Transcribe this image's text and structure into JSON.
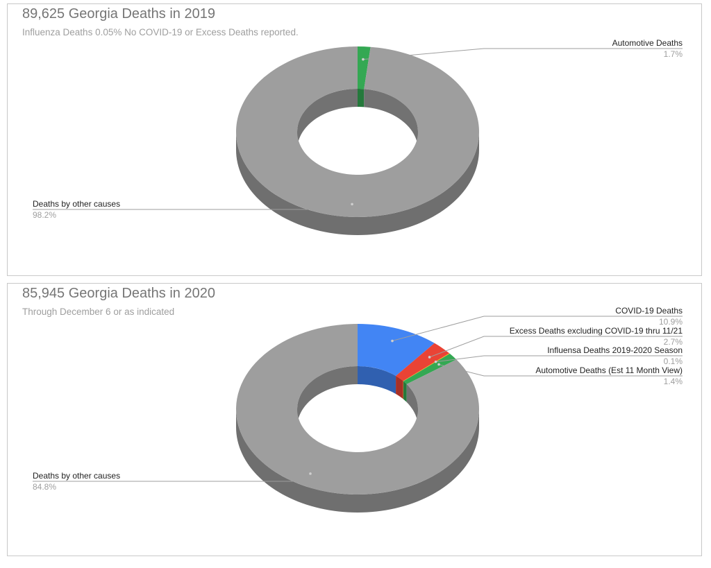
{
  "chart_data": [
    {
      "type": "pie",
      "style": "3d-donut",
      "title": "89,625 Georgia Deaths in 2019",
      "subtitle": "Influenza Deaths 0.05%  No COVID-19 or Excess Deaths reported.",
      "slices": [
        {
          "label": "Automotive Deaths",
          "value": 1.7,
          "value_label": "1.7%",
          "color": "#34a853"
        },
        {
          "label": "Deaths by other causes",
          "value": 98.2,
          "value_label": "98.2%",
          "color": "#9e9e9e"
        }
      ]
    },
    {
      "type": "pie",
      "style": "3d-donut",
      "title": "85,945 Georgia Deaths in 2020",
      "subtitle": "Through December 6 or as indicated",
      "slices": [
        {
          "label": "COVID-19 Deaths",
          "value": 10.9,
          "value_label": "10.9%",
          "color": "#4285f4"
        },
        {
          "label": "Excess Deaths excluding COVID-19 thru 11/21",
          "value": 2.7,
          "value_label": "2.7%",
          "color": "#ea4335"
        },
        {
          "label": "Influensa Deaths 2019-2020 Season",
          "value": 0.1,
          "value_label": "0.1%",
          "color": "#fbbc04"
        },
        {
          "label": "Automotive Deaths (Est 11 Month View)",
          "value": 1.4,
          "value_label": "1.4%",
          "color": "#34a853"
        },
        {
          "label": "Deaths by other causes",
          "value": 84.8,
          "value_label": "84.8%",
          "color": "#9e9e9e"
        }
      ]
    }
  ]
}
